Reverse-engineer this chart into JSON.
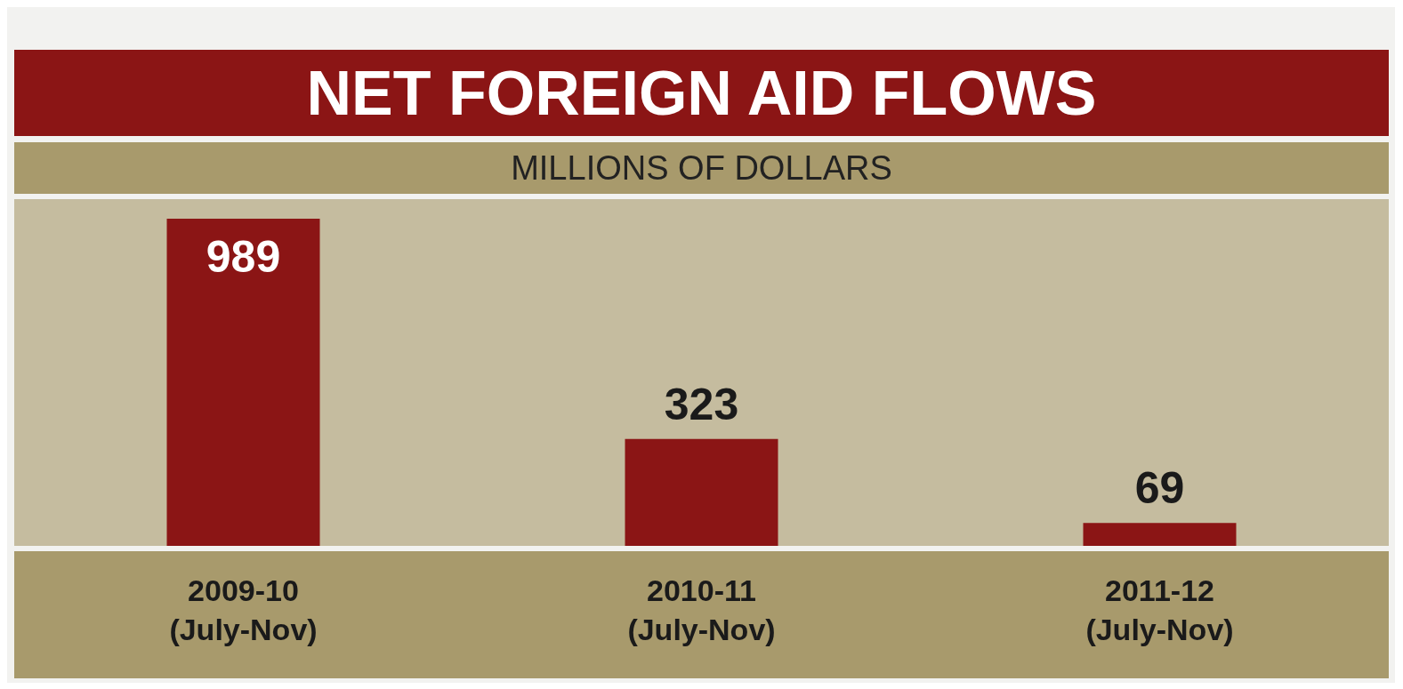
{
  "chart_data": {
    "type": "bar",
    "title": "NET FOREIGN AID FLOWS",
    "subtitle": "MILLIONS OF DOLLARS",
    "categories": [
      "2009-10\n(July-Nov)",
      "2010-11\n(July-Nov)",
      "2011-12\n(July-Nov)"
    ],
    "values": [
      989,
      323,
      69
    ],
    "color": "#8b1515",
    "data_labels": true
  }
}
